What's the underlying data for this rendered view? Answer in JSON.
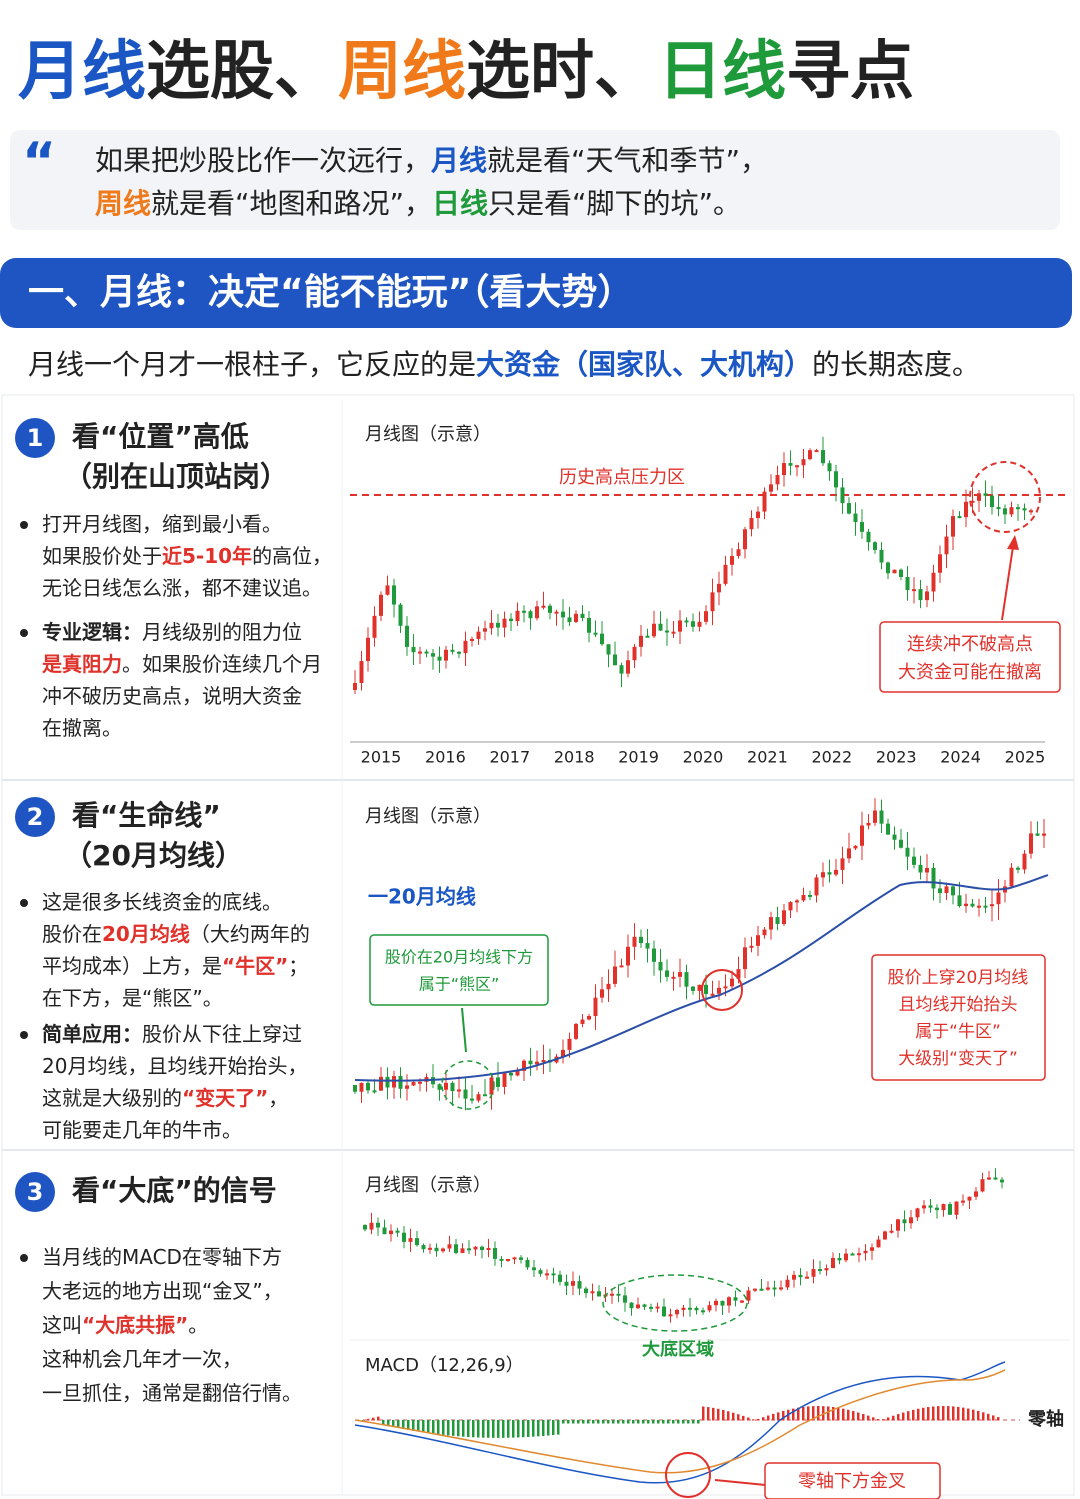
{
  "title": [
    {
      "text": "月线",
      "hl": "blue"
    },
    {
      "text": "选股、"
    },
    {
      "text": "周线",
      "hl": "orange"
    },
    {
      "text": "选时、"
    },
    {
      "text": "日线",
      "hl": "green"
    },
    {
      "text": "寻点"
    }
  ],
  "quote": [
    [
      {
        "text": "如果把炒股比作一次远行，"
      },
      {
        "text": "月线",
        "hl": "blue"
      },
      {
        "text": "就是看“天气和季节”，"
      }
    ],
    [
      {
        "text": "周线",
        "hl": "orange"
      },
      {
        "text": "就是看“地图和路况”，"
      },
      {
        "text": "日线",
        "hl": "green"
      },
      {
        "text": "只是看“脚下的坑”。"
      }
    ]
  ],
  "section": "一、月线：决定“能不能玩”（看大势）",
  "intro": [
    {
      "text": "月线一个月才一根柱子，它反应的是"
    },
    {
      "text": "大资金（国家队、大机构）",
      "hl": "blue"
    },
    {
      "text": "的长期态度。"
    }
  ],
  "panels": [
    {
      "number": "1",
      "title": [
        "看“位置”高低",
        "（别在山顶站岗）"
      ],
      "bullets": [
        [
          [
            {
              "text": "打开月线图，缩到最小看。"
            }
          ],
          [
            {
              "text": "如果股价处于"
            },
            {
              "text": "近5-10年",
              "hl": "red"
            },
            {
              "text": "的高位，"
            }
          ],
          [
            {
              "text": "无论日线怎么涨，都不建议追。"
            }
          ]
        ],
        [
          [
            {
              "text": "专业逻辑：",
              "hl": "bold"
            },
            {
              "text": "月线级别的阻力位"
            }
          ],
          [
            {
              "text": "是真阻力",
              "hl": "red"
            },
            {
              "text": "。如果股价连续几个月"
            }
          ],
          [
            {
              "text": "冲不破历史高点，说明大资金"
            }
          ],
          [
            {
              "text": "在撤离。"
            }
          ]
        ]
      ],
      "chart": {
        "label": "月线图（示意）",
        "resistance": "历史高点压力区",
        "callout": [
          "连续冲不破高点",
          "大资金可能在撤离"
        ],
        "years": [
          2015,
          2016,
          2017,
          2018,
          2019,
          2020,
          2021,
          2022,
          2023,
          2024,
          2025
        ]
      }
    },
    {
      "number": "2",
      "title": [
        "看“生命线”",
        "（20月均线）"
      ],
      "bullets": [
        [
          [
            {
              "text": "这是很多长线资金的底线。"
            }
          ],
          [
            {
              "text": "股价在"
            },
            {
              "text": "20月均线",
              "hl": "red"
            },
            {
              "text": "（大约两年的"
            }
          ],
          [
            {
              "text": "平均成本）上方，是"
            },
            {
              "text": "“牛区”",
              "hl": "red"
            },
            {
              "text": "；"
            }
          ],
          [
            {
              "text": "在下方，是“熊区”。"
            }
          ]
        ],
        [
          [
            {
              "text": "简单应用：",
              "hl": "bold"
            },
            {
              "text": "股价从下往上穿过"
            }
          ],
          [
            {
              "text": "20月均线，且均线开始抬头，"
            }
          ],
          [
            {
              "text": "这就是大级别的"
            },
            {
              "text": "“变天了”",
              "hl": "red"
            },
            {
              "text": "，"
            }
          ],
          [
            {
              "text": "可能要走几年的牛市。"
            }
          ]
        ]
      ],
      "chart": {
        "label": "月线图（示意）",
        "legend": "一20月均线",
        "bear_box": [
          "股价在20月均线下方",
          "属于“熊区”"
        ],
        "bull_box": [
          "股价上穿20月均线",
          "且均线开始抬头",
          "属于“牛区”",
          "大级别“变天了”"
        ]
      }
    },
    {
      "number": "3",
      "title": [
        "看“大底”的信号"
      ],
      "bullets": [
        [
          [
            {
              "text": "当月线的MACD在零轴下方"
            }
          ],
          [
            {
              "text": "大老远的地方出现“金叉”，"
            }
          ],
          [
            {
              "text": "这叫"
            },
            {
              "text": "“大底共振”",
              "hl": "red"
            },
            {
              "text": "。"
            }
          ],
          [
            {
              "text": "这种机会几年才一次，"
            }
          ],
          [
            {
              "text": "一旦抓住，通常是翻倍行情。"
            }
          ]
        ]
      ],
      "chart": {
        "label": "月线图（示意）",
        "bottom": "大底区域",
        "macd": "MACD（12,26,9）",
        "zero": "零轴",
        "cross": "零轴下方金叉"
      }
    }
  ]
}
